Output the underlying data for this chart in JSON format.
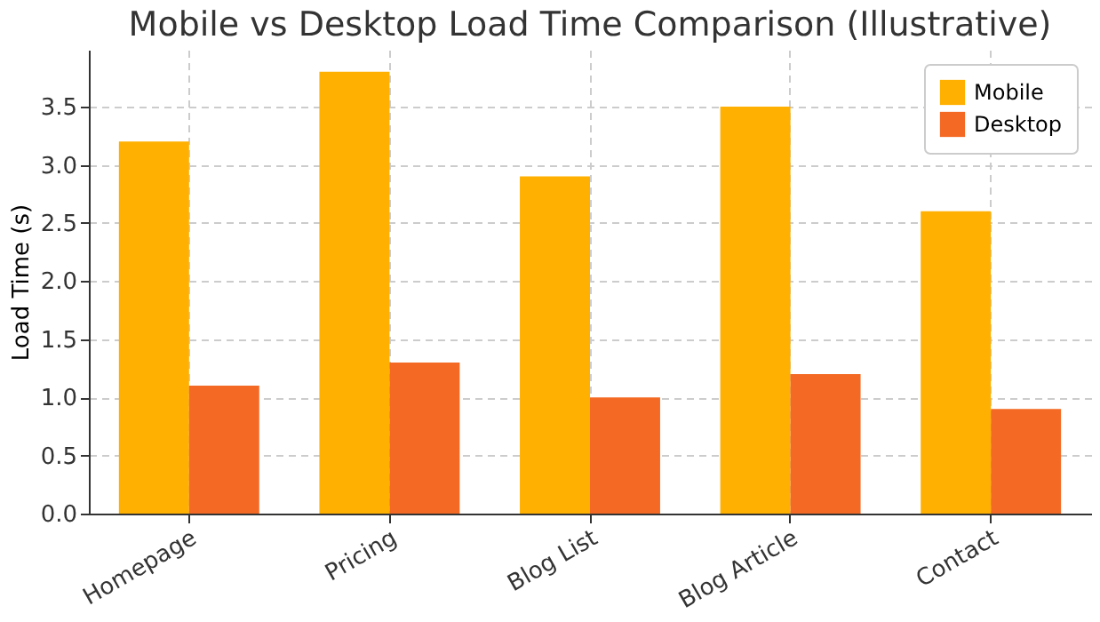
{
  "chart_data": {
    "type": "bar",
    "title": "Mobile vs Desktop Load Time Comparison (Illustrative)",
    "ylabel": "Load Time (s)",
    "categories": [
      "Homepage",
      "Pricing",
      "Blog List",
      "Blog Article",
      "Contact"
    ],
    "series": [
      {
        "name": "Mobile",
        "color": "#ffb000",
        "values": [
          3.2,
          3.8,
          2.9,
          3.5,
          2.6
        ]
      },
      {
        "name": "Desktop",
        "color": "#f46a25",
        "values": [
          1.1,
          1.3,
          1.0,
          1.2,
          0.9
        ]
      }
    ],
    "ylim": [
      0,
      3.99
    ],
    "yticks": [
      {
        "value": 0,
        "label": "0.0"
      },
      0.5,
      {
        "value": 1,
        "label": "1.0"
      },
      1.5,
      {
        "value": 2,
        "label": "2.0"
      },
      2.5,
      {
        "value": 3,
        "label": "3.0"
      },
      3.5
    ],
    "grid": true,
    "legend": "top right"
  }
}
